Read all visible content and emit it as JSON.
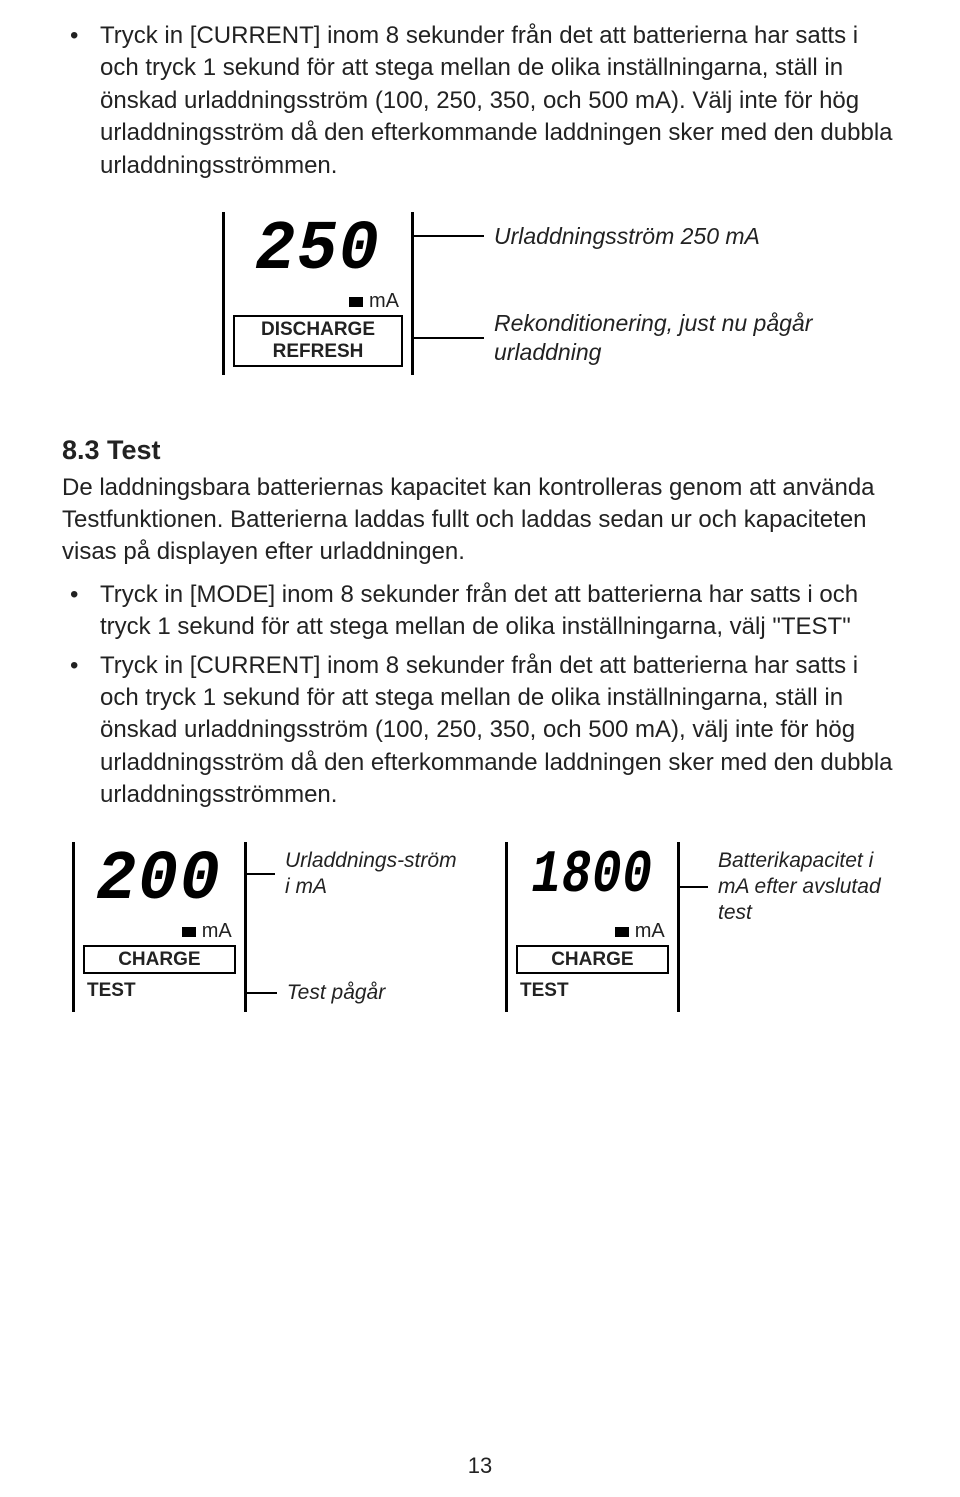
{
  "top_bullet": "Tryck in [CURRENT] inom 8 sekunder från det att batterierna har satts i och tryck 1 sekund för att stega mellan de olika inställningarna, ställ in önskad urladdningsström (100, 250, 350, och 500 mA). Välj inte för hög urladdningsström då den efterkommande laddningen sker med den dubbla urladdningsströmmen.",
  "diagram1": {
    "value": "250",
    "unit": "mA",
    "mode_line1": "DISCHARGE",
    "mode_line2": "REFRESH",
    "callout1": "Urladdningsström 250 mA",
    "callout2": "Rekonditionering, just nu pågår urladdning"
  },
  "section_heading": "8.3 Test",
  "section_intro": "De laddningsbara batteriernas kapacitet kan kontrolleras genom att använda Testfunktionen. Batterierna laddas fullt och laddas sedan ur och kapaciteten visas på displayen efter urladdningen.",
  "bullet2a": "Tryck in [MODE] inom 8 sekunder från det att batterierna har satts i och tryck 1 sekund för att stega mellan de olika inställningarna, välj \"TEST\"",
  "bullet2b": "Tryck in [CURRENT] inom 8 sekunder från det att batterierna har satts i och tryck 1 sekund för att stega mellan de olika inställningarna, ställ in önskad urladdningsström (100, 250, 350, och 500 mA), välj inte för hög urladdningsström då den efterkommande laddningen sker med den dubbla urladdningsströmmen.",
  "diagram2": {
    "value": "200",
    "unit": "mA",
    "mode_line1": "CHARGE",
    "mode_line2": "TEST",
    "callout1": "Urladdnings-ström i mA",
    "callout2": "Test pågår"
  },
  "diagram3": {
    "value": "1800",
    "unit": "mA",
    "mode_line1": "CHARGE",
    "mode_line2": "TEST",
    "callout1": "Batterikapacitet i mA efter avslutad test"
  },
  "page_number": "13",
  "colors": {
    "text": "#222222",
    "line": "#000000",
    "bg": "#ffffff"
  }
}
